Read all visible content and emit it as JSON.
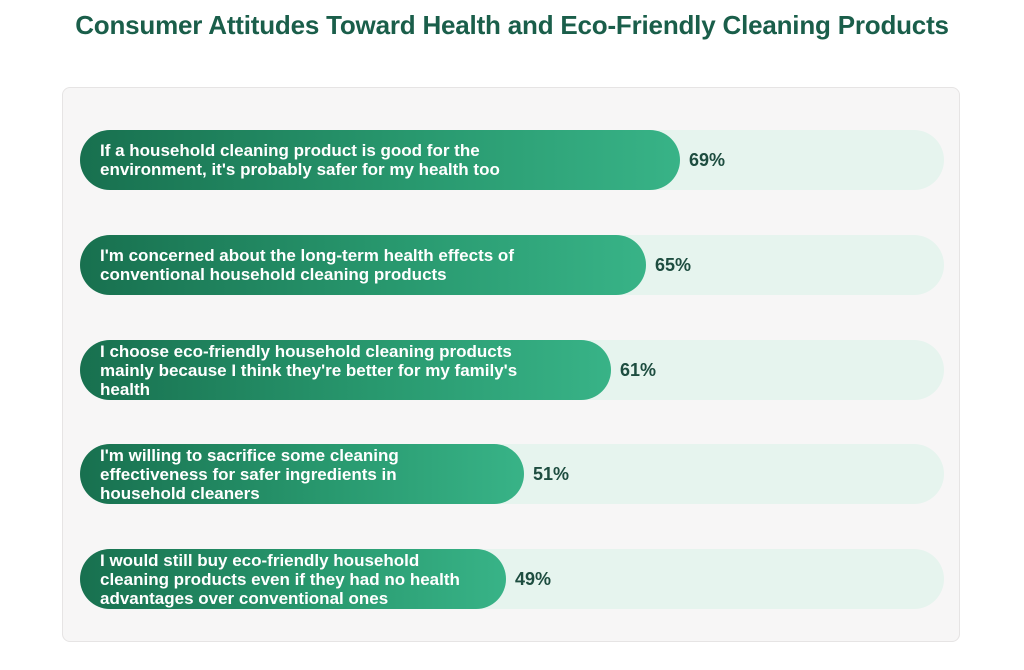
{
  "chart_data": {
    "type": "bar",
    "orientation": "horizontal",
    "title": "Consumer Attitudes Toward Health and Eco-Friendly Cleaning Products",
    "value_format": "{v}%",
    "xlim": [
      0,
      100
    ],
    "grid": false,
    "categories": [
      "If a household cleaning product is good for the environment, it's probably safer for my health too",
      "I'm concerned about the long-term health effects of conventional household cleaning products",
      "I choose eco-friendly household cleaning products mainly because I think they're better for my family's health",
      "I'm willing to sacrifice some cleaning effectiveness for safer ingredients in household cleaners",
      "I would still buy eco-friendly household cleaning products even if they had no health advantages over conventional ones"
    ],
    "values": [
      69,
      65,
      61,
      51,
      49
    ],
    "value_labels": [
      "69%",
      "65%",
      "61%",
      "51%",
      "49%"
    ],
    "colors": {
      "title": "#1a5e4a",
      "bar_start": "#18704f",
      "bar_end": "#38b387",
      "track": "#e6f4ee",
      "panel": "#f7f6f6",
      "value_text": "#1e4d40"
    }
  }
}
